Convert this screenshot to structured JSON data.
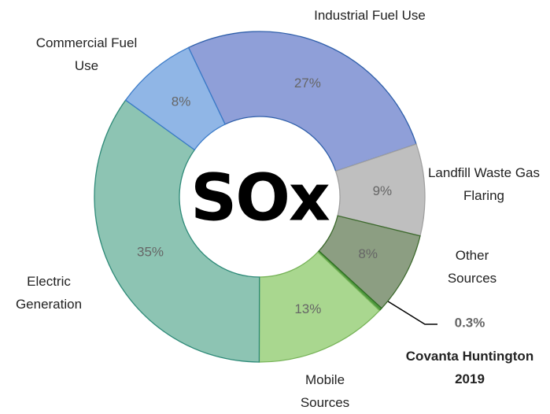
{
  "chart_data": {
    "type": "donut",
    "title": "SOx",
    "categories": [
      "Industrial Fuel Use",
      "Landfill Waste Gas Flaring",
      "Other Sources",
      "Covanta Huntington 2019",
      "Mobile Sources",
      "Electric Generation",
      "Commercial Fuel Use"
    ],
    "values": [
      27,
      9,
      8,
      0.3,
      13,
      35,
      8
    ],
    "value_labels": [
      "27%",
      "9%",
      "8%",
      "0.3%",
      "13%",
      "35%",
      "8%"
    ],
    "colors": [
      "#8f9fd8",
      "#bfbfbf",
      "#8c9e82",
      "#4e9a3e",
      "#a9d78f",
      "#8dc4b3",
      "#90b6e6"
    ]
  }
}
